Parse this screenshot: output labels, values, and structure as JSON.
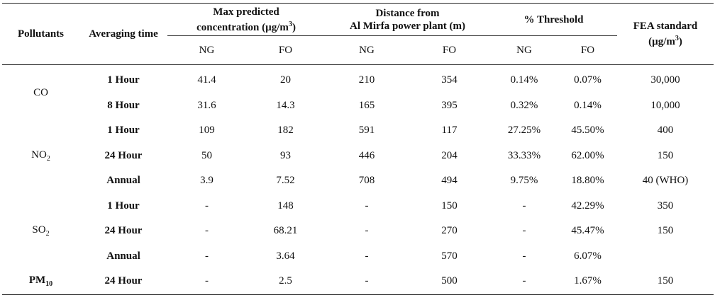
{
  "headers": {
    "pollutants": "Pollutants",
    "averaging_time": "Averaging time",
    "max_predicted_line1": "Max predicted",
    "max_predicted_line2": "concentration (µg/m",
    "max_predicted_sup": "3",
    "max_predicted_end": ")",
    "distance_line1": "Distance from",
    "distance_line2": "Al Mirfa power plant (m)",
    "threshold": "% Threshold",
    "fea_standard": "FEA standard (µg/m",
    "fea_sup": "3",
    "fea_end": ")",
    "ng1": "NG",
    "fo1": "FO",
    "ng2": "NG",
    "fo2": "FO",
    "ng3": "NG",
    "fo3": "FO"
  },
  "pollutant_labels": {
    "co": "CO",
    "no2_base": "NO",
    "no2_sub": "2",
    "so2_base": "SO",
    "so2_sub": "2",
    "pm10_base": "PM",
    "pm10_sub": "10"
  },
  "rows": [
    {
      "time": "1 Hour",
      "max_ng": "41.4",
      "max_fo": "20",
      "dist_ng": "210",
      "dist_fo": "354",
      "thr_ng": "0.14%",
      "thr_fo": "0.07%",
      "fea": "30,000"
    },
    {
      "time": "8 Hour",
      "max_ng": "31.6",
      "max_fo": "14.3",
      "dist_ng": "165",
      "dist_fo": "395",
      "thr_ng": "0.32%",
      "thr_fo": "0.14%",
      "fea": "10,000"
    },
    {
      "time": "1 Hour",
      "max_ng": "109",
      "max_fo": "182",
      "dist_ng": "591",
      "dist_fo": "117",
      "thr_ng": "27.25%",
      "thr_fo": "45.50%",
      "fea": "400"
    },
    {
      "time": "24 Hour",
      "max_ng": "50",
      "max_fo": "93",
      "dist_ng": "446",
      "dist_fo": "204",
      "thr_ng": "33.33%",
      "thr_fo": "62.00%",
      "fea": "150"
    },
    {
      "time": "Annual",
      "max_ng": "3.9",
      "max_fo": "7.52",
      "dist_ng": "708",
      "dist_fo": "494",
      "thr_ng": "9.75%",
      "thr_fo": "18.80%",
      "fea": "40 (WHO)"
    },
    {
      "time": "1 Hour",
      "max_ng": "-",
      "max_fo": "148",
      "dist_ng": "-",
      "dist_fo": "150",
      "thr_ng": "-",
      "thr_fo": "42.29%",
      "fea": "350"
    },
    {
      "time": "24 Hour",
      "max_ng": "-",
      "max_fo": "68.21",
      "dist_ng": "-",
      "dist_fo": "270",
      "thr_ng": "-",
      "thr_fo": "45.47%",
      "fea": "150"
    },
    {
      "time": "Annual",
      "max_ng": "-",
      "max_fo": "3.64",
      "dist_ng": "-",
      "dist_fo": "570",
      "thr_ng": "-",
      "thr_fo": "6.07%",
      "fea": ""
    },
    {
      "time": "24 Hour",
      "max_ng": "-",
      "max_fo": "2.5",
      "dist_ng": "-",
      "dist_fo": "500",
      "thr_ng": "-",
      "thr_fo": "1.67%",
      "fea": "150"
    }
  ]
}
